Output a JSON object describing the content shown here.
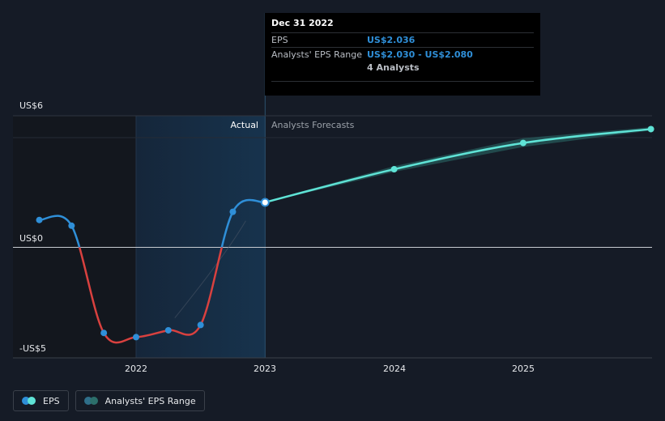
{
  "colors": {
    "eps_positive": "#2f8fd8",
    "eps_negative": "#d9413f",
    "forecast": "#5fe3d6",
    "range_band": "#2c6f6b",
    "background": "#151b26"
  },
  "tooltip": {
    "date": "Dec 31 2022",
    "eps_label": "EPS",
    "eps_value": "US$2.036",
    "range_label": "Analysts' EPS Range",
    "range_value": "US$2.030 - US$2.080",
    "analysts": "4 Analysts"
  },
  "legend": {
    "eps_label": "EPS",
    "range_label": "Analysts' EPS Range"
  },
  "chart_data": {
    "type": "line",
    "y_tick_labels": [
      "US$6",
      "US$0",
      "-US$5"
    ],
    "x_tick_labels": [
      "2022",
      "2023",
      "2024",
      "2025"
    ],
    "region_labels": {
      "actual": "Actual",
      "forecast": "Analysts Forecasts"
    },
    "ylim": [
      -5,
      6
    ],
    "xlim": [
      2021.0,
      2025.99
    ],
    "series": [
      {
        "name": "EPS",
        "kind": "actual",
        "points": [
          {
            "x": 2021.25,
            "y": 1.24
          },
          {
            "x": 2021.5,
            "y": 0.98
          },
          {
            "x": 2021.75,
            "y": -3.88
          },
          {
            "x": 2022.0,
            "y": -4.07
          },
          {
            "x": 2022.25,
            "y": -3.76
          },
          {
            "x": 2022.5,
            "y": -3.52
          },
          {
            "x": 2022.75,
            "y": 1.61
          },
          {
            "x": 2023.0,
            "y": 2.04
          }
        ]
      },
      {
        "name": "Analysts Forecasts",
        "kind": "forecast",
        "points": [
          {
            "x": 2023.0,
            "y": 2.04
          },
          {
            "x": 2024.0,
            "y": 3.54
          },
          {
            "x": 2025.0,
            "y": 4.73
          },
          {
            "x": 2025.99,
            "y": 5.36
          }
        ]
      },
      {
        "name": "Analysts' EPS Range",
        "kind": "range",
        "points": [
          {
            "x": 2023.0,
            "low": 2.03,
            "high": 2.08
          },
          {
            "x": 2024.0,
            "low": 3.42,
            "high": 3.68
          },
          {
            "x": 2025.0,
            "low": 4.55,
            "high": 4.95
          },
          {
            "x": 2025.99,
            "low": 5.3,
            "high": 5.45
          }
        ]
      }
    ],
    "highlight_point": {
      "x": 2023.0,
      "y": 2.036
    }
  }
}
